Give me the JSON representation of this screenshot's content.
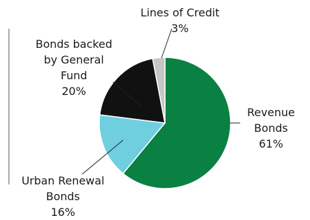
{
  "chart_data": {
    "type": "pie",
    "title": "",
    "categories": [
      "Revenue Bonds",
      "Urban Renewal Bonds",
      "Bonds backed by General Fund",
      "Lines of Credit"
    ],
    "values": [
      61,
      16,
      20,
      3
    ],
    "colors": [
      "#0a8043",
      "#6fcfdf",
      "#111111",
      "#c6c6c6"
    ],
    "value_labels": [
      "61%",
      "16%",
      "20%",
      "3%"
    ],
    "label_lines": [
      [
        "Revenue",
        "Bonds",
        "61%"
      ],
      [
        "Urban Renewal",
        "Bonds",
        "16%"
      ],
      [
        "Bonds backed",
        "by General",
        "Fund",
        "20%"
      ],
      [
        "Lines of Credit",
        "3%"
      ]
    ],
    "start_angle_deg": 0,
    "direction": "clockwise",
    "legend": "none",
    "slice_border_color": "#ffffff"
  }
}
